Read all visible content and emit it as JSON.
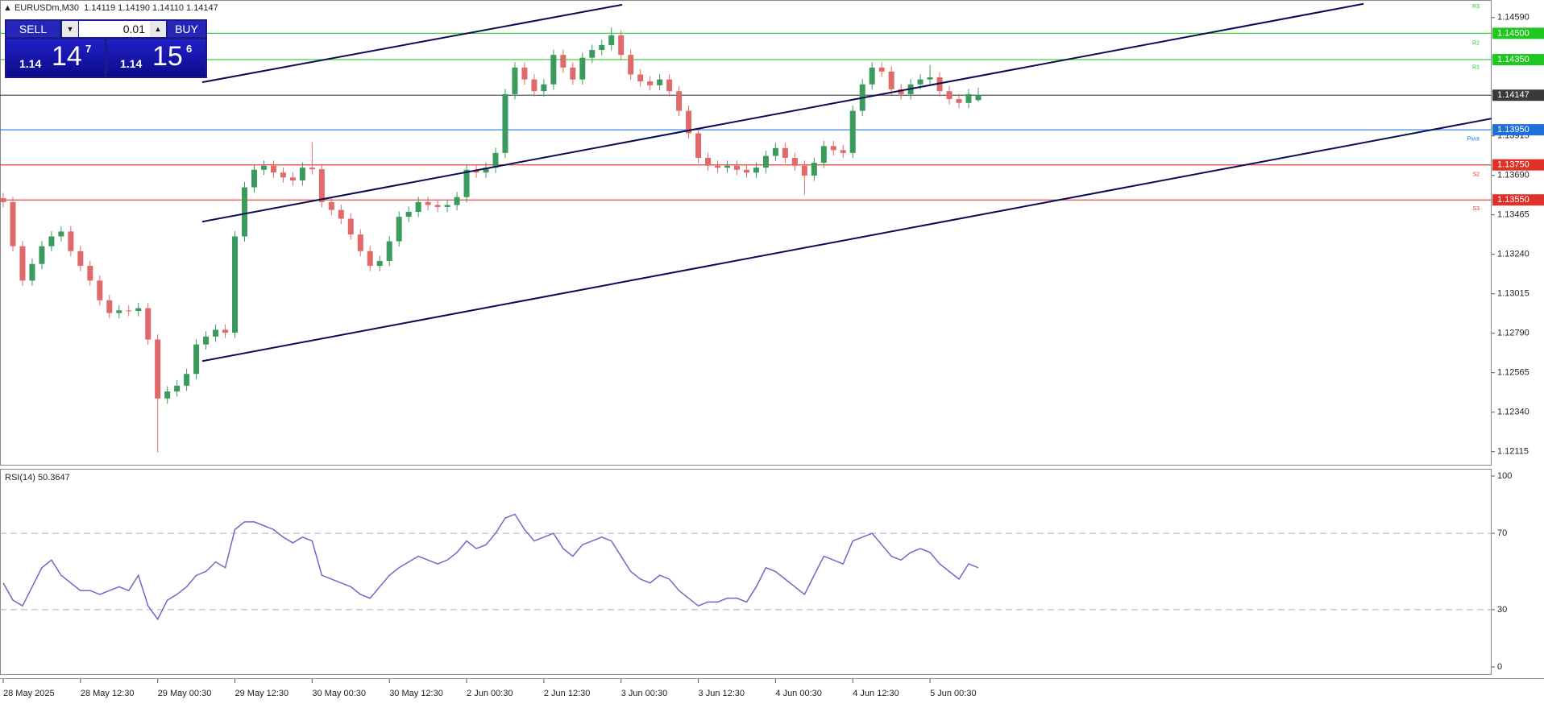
{
  "header": {
    "symbol": "EURUSDm,M30",
    "ohlc": [
      "1.14119",
      "1.14190",
      "1.14110",
      "1.14147"
    ]
  },
  "trade_panel": {
    "sell": "SELL",
    "buy": "BUY",
    "volume": "0.01",
    "bid": {
      "big": "1.14",
      "main": "14",
      "sup": "7"
    },
    "ask": {
      "big": "1.14",
      "main": "15",
      "sup": "6"
    }
  },
  "chart_data": [
    {
      "type": "candlestick",
      "categories": [
        "28 May 2025",
        null,
        null,
        null,
        null,
        null,
        null,
        null,
        "28 May 12:30",
        null,
        null,
        null,
        null,
        null,
        null,
        null,
        "29 May 00:30",
        null,
        null,
        null,
        null,
        null,
        null,
        null,
        "29 May 12:30",
        null,
        null,
        null,
        null,
        null,
        null,
        null,
        "30 May 00:30",
        null,
        null,
        null,
        null,
        null,
        null,
        null,
        "30 May 12:30",
        null,
        null,
        null,
        null,
        null,
        null,
        null,
        "2 Jun 00:30",
        null,
        null,
        null,
        null,
        null,
        null,
        null,
        "2 Jun 12:30",
        null,
        null,
        null,
        null,
        null,
        null,
        null,
        "3 Jun 00:30",
        null,
        null,
        null,
        null,
        null,
        null,
        null,
        "3 Jun 12:30",
        null,
        null,
        null,
        null,
        null,
        null,
        null,
        "4 Jun 00:30",
        null,
        null,
        null,
        null,
        null,
        null,
        null,
        "4 Jun 12:30",
        null,
        null,
        null,
        null,
        null,
        null,
        null,
        "5 Jun 00:30",
        null,
        null,
        null,
        null,
        null
      ],
      "open": [
        1.1356,
        1.13538,
        1.13286,
        1.1309,
        1.13185,
        1.13286,
        1.13342,
        1.1337,
        1.13258,
        1.13174,
        1.1309,
        1.12978,
        1.12905,
        1.1292,
        1.12917,
        1.12933,
        1.12754,
        1.12418,
        1.12458,
        1.12491,
        1.12558,
        1.12726,
        1.12771,
        1.1281,
        1.12793,
        1.13342,
        1.13622,
        1.13722,
        1.13745,
        1.13706,
        1.13678,
        1.13661,
        1.13734,
        1.13725,
        1.13538,
        1.13493,
        1.13443,
        1.13353,
        1.13258,
        1.13174,
        1.13202,
        1.13314,
        1.13454,
        1.13482,
        1.13538,
        1.13521,
        1.1351,
        1.13521,
        1.13566,
        1.13722,
        1.13706,
        1.13734,
        1.13818,
        1.14153,
        1.14305,
        1.14237,
        1.1417,
        1.14209,
        1.14377,
        1.14305,
        1.14237,
        1.14361,
        1.14405,
        1.14433,
        1.14489,
        1.14377,
        1.14265,
        1.14226,
        1.14204,
        1.14237,
        1.1417,
        1.14058,
        1.1393,
        1.1379,
        1.13745,
        1.13734,
        1.13745,
        1.13722,
        1.13706,
        1.13734,
        1.13801,
        1.13846,
        1.1379,
        1.13745,
        1.13689,
        1.13762,
        1.13857,
        1.13834,
        1.13818,
        1.14058,
        1.14209,
        1.14305,
        1.14282,
        1.14181,
        1.14153,
        1.14209,
        1.14237,
        1.14249,
        1.1417,
        1.14125,
        1.14103,
        1.14119
      ],
      "high": [
        1.1359,
        1.13568,
        1.13316,
        1.13215,
        1.13316,
        1.13372,
        1.134,
        1.134,
        1.13288,
        1.13204,
        1.1312,
        1.13008,
        1.1295,
        1.1295,
        1.12963,
        1.12963,
        1.12784,
        1.12488,
        1.12521,
        1.12588,
        1.12756,
        1.12801,
        1.1284,
        1.1284,
        1.13372,
        1.13652,
        1.13752,
        1.13775,
        1.13775,
        1.13736,
        1.13708,
        1.13764,
        1.1388,
        1.13755,
        1.13568,
        1.13523,
        1.13473,
        1.13383,
        1.13288,
        1.13232,
        1.13344,
        1.13484,
        1.13512,
        1.13568,
        1.13568,
        1.13551,
        1.13551,
        1.13596,
        1.13752,
        1.13752,
        1.13764,
        1.13848,
        1.14183,
        1.14335,
        1.14335,
        1.14267,
        1.14239,
        1.14407,
        1.14407,
        1.14335,
        1.14391,
        1.14435,
        1.14463,
        1.14534,
        1.14519,
        1.14407,
        1.14295,
        1.14256,
        1.14267,
        1.14267,
        1.142,
        1.14088,
        1.1396,
        1.1382,
        1.13775,
        1.13775,
        1.13775,
        1.13752,
        1.13764,
        1.13831,
        1.13876,
        1.13876,
        1.1382,
        1.13775,
        1.13792,
        1.13887,
        1.13887,
        1.13864,
        1.14088,
        1.14239,
        1.14335,
        1.14335,
        1.14312,
        1.14211,
        1.14239,
        1.14267,
        1.1432,
        1.14279,
        1.142,
        1.14155,
        1.14183,
        1.1419
      ],
      "low": [
        1.13508,
        1.13256,
        1.1306,
        1.1306,
        1.13155,
        1.13256,
        1.13312,
        1.13228,
        1.13144,
        1.1306,
        1.12948,
        1.12875,
        1.12875,
        1.12887,
        1.12887,
        1.12724,
        1.1211,
        1.12388,
        1.12428,
        1.12461,
        1.12528,
        1.12696,
        1.12741,
        1.12763,
        1.12763,
        1.13312,
        1.13592,
        1.13692,
        1.13676,
        1.13648,
        1.13631,
        1.13631,
        1.13695,
        1.13508,
        1.13463,
        1.13413,
        1.13323,
        1.13228,
        1.13144,
        1.13144,
        1.13172,
        1.13284,
        1.13424,
        1.13452,
        1.13491,
        1.1348,
        1.1348,
        1.13491,
        1.13536,
        1.13676,
        1.13676,
        1.13704,
        1.13788,
        1.14123,
        1.14207,
        1.1414,
        1.1414,
        1.14179,
        1.14275,
        1.14207,
        1.14207,
        1.14331,
        1.14375,
        1.14403,
        1.14347,
        1.14235,
        1.14196,
        1.14174,
        1.14174,
        1.1414,
        1.14028,
        1.139,
        1.1376,
        1.13715,
        1.13704,
        1.13704,
        1.13692,
        1.13676,
        1.13676,
        1.13704,
        1.13771,
        1.1376,
        1.13715,
        1.1358,
        1.13659,
        1.13732,
        1.13804,
        1.13788,
        1.13788,
        1.14028,
        1.14179,
        1.14252,
        1.14151,
        1.14123,
        1.14123,
        1.14179,
        1.14207,
        1.1414,
        1.14095,
        1.14073,
        1.14073,
        1.1411
      ],
      "close": [
        1.13538,
        1.13286,
        1.1309,
        1.13185,
        1.13286,
        1.13342,
        1.1337,
        1.13258,
        1.13174,
        1.1309,
        1.12978,
        1.12905,
        1.1292,
        1.12917,
        1.12933,
        1.12754,
        1.12418,
        1.12458,
        1.12491,
        1.12558,
        1.12726,
        1.12771,
        1.1281,
        1.12793,
        1.13342,
        1.13622,
        1.13722,
        1.13745,
        1.13706,
        1.13678,
        1.13661,
        1.13734,
        1.13725,
        1.13538,
        1.13493,
        1.13443,
        1.13353,
        1.13258,
        1.13174,
        1.13202,
        1.13314,
        1.13454,
        1.13482,
        1.13538,
        1.13521,
        1.1351,
        1.13521,
        1.13566,
        1.13722,
        1.13706,
        1.13734,
        1.13818,
        1.14153,
        1.14305,
        1.14237,
        1.1417,
        1.14209,
        1.14377,
        1.14305,
        1.14237,
        1.14361,
        1.14405,
        1.14433,
        1.14489,
        1.14377,
        1.14265,
        1.14226,
        1.14204,
        1.14237,
        1.1417,
        1.14058,
        1.1393,
        1.1379,
        1.13745,
        1.13734,
        1.13745,
        1.13722,
        1.13706,
        1.13734,
        1.13801,
        1.13846,
        1.1379,
        1.13745,
        1.13689,
        1.13762,
        1.13857,
        1.13834,
        1.13818,
        1.14058,
        1.14209,
        1.14305,
        1.14282,
        1.14181,
        1.14153,
        1.14209,
        1.14237,
        1.14249,
        1.1417,
        1.14125,
        1.14103,
        1.14153,
        1.14147
      ],
      "up_color": "#3a9b5c",
      "down_color": "#e06a6a",
      "ylim": [
        1.1204,
        1.1469
      ],
      "yticks": [
        {
          "value": 1.1459,
          "label": "1.14590"
        },
        {
          "value": 1.13915,
          "label": "1.13915"
        },
        {
          "value": 1.1369,
          "label": "1.13690"
        },
        {
          "value": 1.13465,
          "label": "1.13465"
        },
        {
          "value": 1.1324,
          "label": "1.13240"
        },
        {
          "value": 1.13015,
          "label": "1.13015"
        },
        {
          "value": 1.1279,
          "label": "1.12790"
        },
        {
          "value": 1.12565,
          "label": "1.12565"
        },
        {
          "value": 1.1234,
          "label": "1.12340"
        },
        {
          "value": 1.12115,
          "label": "1.12115"
        }
      ],
      "levels": [
        {
          "value": 1.145,
          "label": "1.14500",
          "color": "#1fc81f"
        },
        {
          "value": 1.1435,
          "label": "1.14350",
          "color": "#1fc81f"
        },
        {
          "value": 1.14147,
          "label": "1.14147",
          "color": "#3a3a3a"
        },
        {
          "value": 1.1395,
          "label": "1.13950",
          "color": "#1e6fd9"
        },
        {
          "value": 1.1375,
          "label": "1.13750",
          "color": "#e0302a"
        },
        {
          "value": 1.1355,
          "label": "1.13550",
          "color": "#e0302a"
        }
      ],
      "pivots": [
        {
          "name": "R3",
          "value": 1.14652,
          "color": "#1fc81f"
        },
        {
          "name": "R2",
          "value": 1.14444,
          "color": "#1fc81f"
        },
        {
          "name": "R1",
          "value": 1.14305,
          "color": "#1fc81f"
        },
        {
          "name": "Pivot",
          "value": 1.13896,
          "color": "#1e6fd9"
        },
        {
          "name": "S2",
          "value": 1.13694,
          "color": "#e0302a"
        },
        {
          "name": "S3",
          "value": 1.13499,
          "color": "#e0302a"
        }
      ],
      "trendlines": [
        {
          "values": [
            1.14221,
            1.14663
          ]
        },
        {
          "values": [
            1.13426,
            1.14668
          ]
        },
        {
          "values": [
            1.12631,
            1.14014
          ]
        }
      ],
      "trend_color": "#0b0b55"
    },
    {
      "type": "line",
      "title": "RSI(14) 50.3647",
      "color": "#7a63c4",
      "values": [
        44,
        35,
        32,
        42,
        52,
        56,
        48,
        44,
        40,
        40,
        38,
        40,
        42,
        40,
        48,
        32,
        25,
        35,
        38,
        42,
        48,
        50,
        55,
        52,
        72,
        76,
        76,
        74,
        72,
        68,
        65,
        68,
        66,
        48,
        46,
        44,
        42,
        38,
        36,
        42,
        48,
        52,
        55,
        58,
        56,
        54,
        56,
        60,
        66,
        62,
        64,
        70,
        78,
        80,
        72,
        66,
        68,
        70,
        62,
        58,
        64,
        66,
        68,
        66,
        58,
        50,
        46,
        44,
        48,
        46,
        40,
        36,
        32,
        34,
        34,
        36,
        36,
        34,
        42,
        52,
        50,
        46,
        42,
        38,
        48,
        58,
        56,
        54,
        66,
        68,
        70,
        64,
        58,
        56,
        60,
        62,
        60,
        54,
        50,
        46,
        54,
        52
      ],
      "ylim": [
        0,
        100
      ],
      "yticks": [
        0,
        30,
        70,
        100
      ],
      "levels": [
        70,
        30
      ]
    }
  ]
}
